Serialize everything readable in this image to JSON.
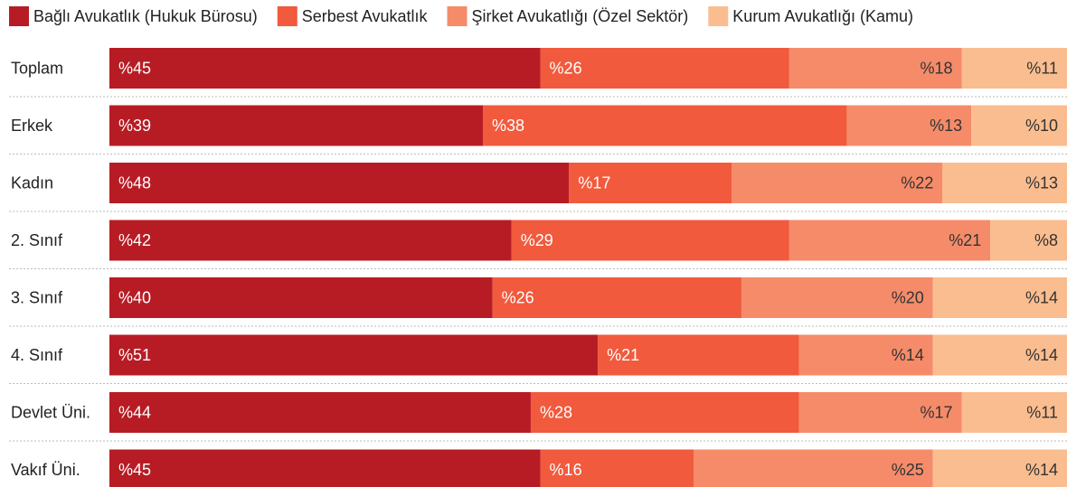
{
  "chart_data": {
    "type": "stacked-bar",
    "orientation": "horizontal",
    "categories": [
      "Toplam",
      "Erkek",
      "Kadın",
      "2. Sınıf",
      "3. Sınıf",
      "4. Sınıf",
      "Devlet Üni.",
      "Vakıf Üni."
    ],
    "legend": "top-left",
    "series": [
      {
        "name": "Bağlı Avukatlık (Hukuk Bürosu)",
        "color": "#b71c25",
        "values": [
          45,
          39,
          48,
          42,
          40,
          51,
          44,
          45
        ],
        "value_labels": [
          "%45",
          "%39",
          "%48",
          "%42",
          "%40",
          "%51",
          "%44",
          "%45"
        ]
      },
      {
        "name": "Serbest Avukatlık",
        "color": "#f15a3d",
        "values": [
          26,
          38,
          17,
          29,
          26,
          21,
          28,
          16
        ],
        "value_labels": [
          "%26",
          "%38",
          "%17",
          "%29",
          "%26",
          "%21",
          "%28",
          "%16"
        ]
      },
      {
        "name": "Şirket Avukatlığı (Özel Sektör)",
        "color": "#f68b69",
        "values": [
          18,
          13,
          22,
          21,
          20,
          14,
          17,
          25
        ],
        "value_labels": [
          "%18",
          "%13",
          "%22",
          "%21",
          "%20",
          "%14",
          "%17",
          "%25"
        ]
      },
      {
        "name": "Kurum Avukatlığı (Kamu)",
        "color": "#fabd8f",
        "values": [
          11,
          10,
          13,
          8,
          14,
          14,
          11,
          14
        ],
        "value_labels": [
          "%11",
          "%10",
          "%13",
          "%8",
          "%14",
          "%14",
          "%11",
          "%14"
        ]
      }
    ]
  }
}
